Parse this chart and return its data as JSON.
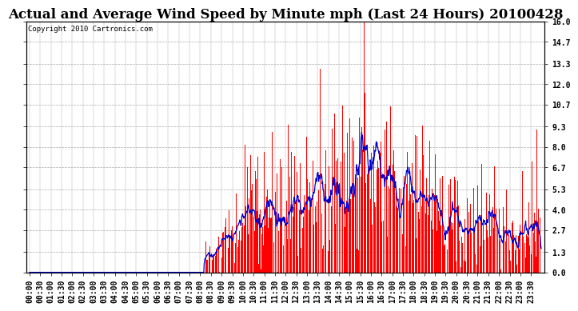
{
  "title": "Actual and Average Wind Speed by Minute mph (Last 24 Hours) 20100428",
  "copyright": "Copyright 2010 Cartronics.com",
  "ylabel_right_ticks": [
    0.0,
    1.3,
    2.7,
    4.0,
    5.3,
    6.7,
    8.0,
    9.3,
    10.7,
    12.0,
    13.3,
    14.7,
    16.0
  ],
  "ymax": 16.0,
  "ymin": 0.0,
  "bar_color": "#ff0000",
  "line_color": "#0000cc",
  "background_color": "#ffffff",
  "grid_color": "#aaaaaa",
  "title_fontsize": 12,
  "copyright_fontsize": 6.5,
  "tick_fontsize": 7,
  "tick_interval_minutes": 30
}
